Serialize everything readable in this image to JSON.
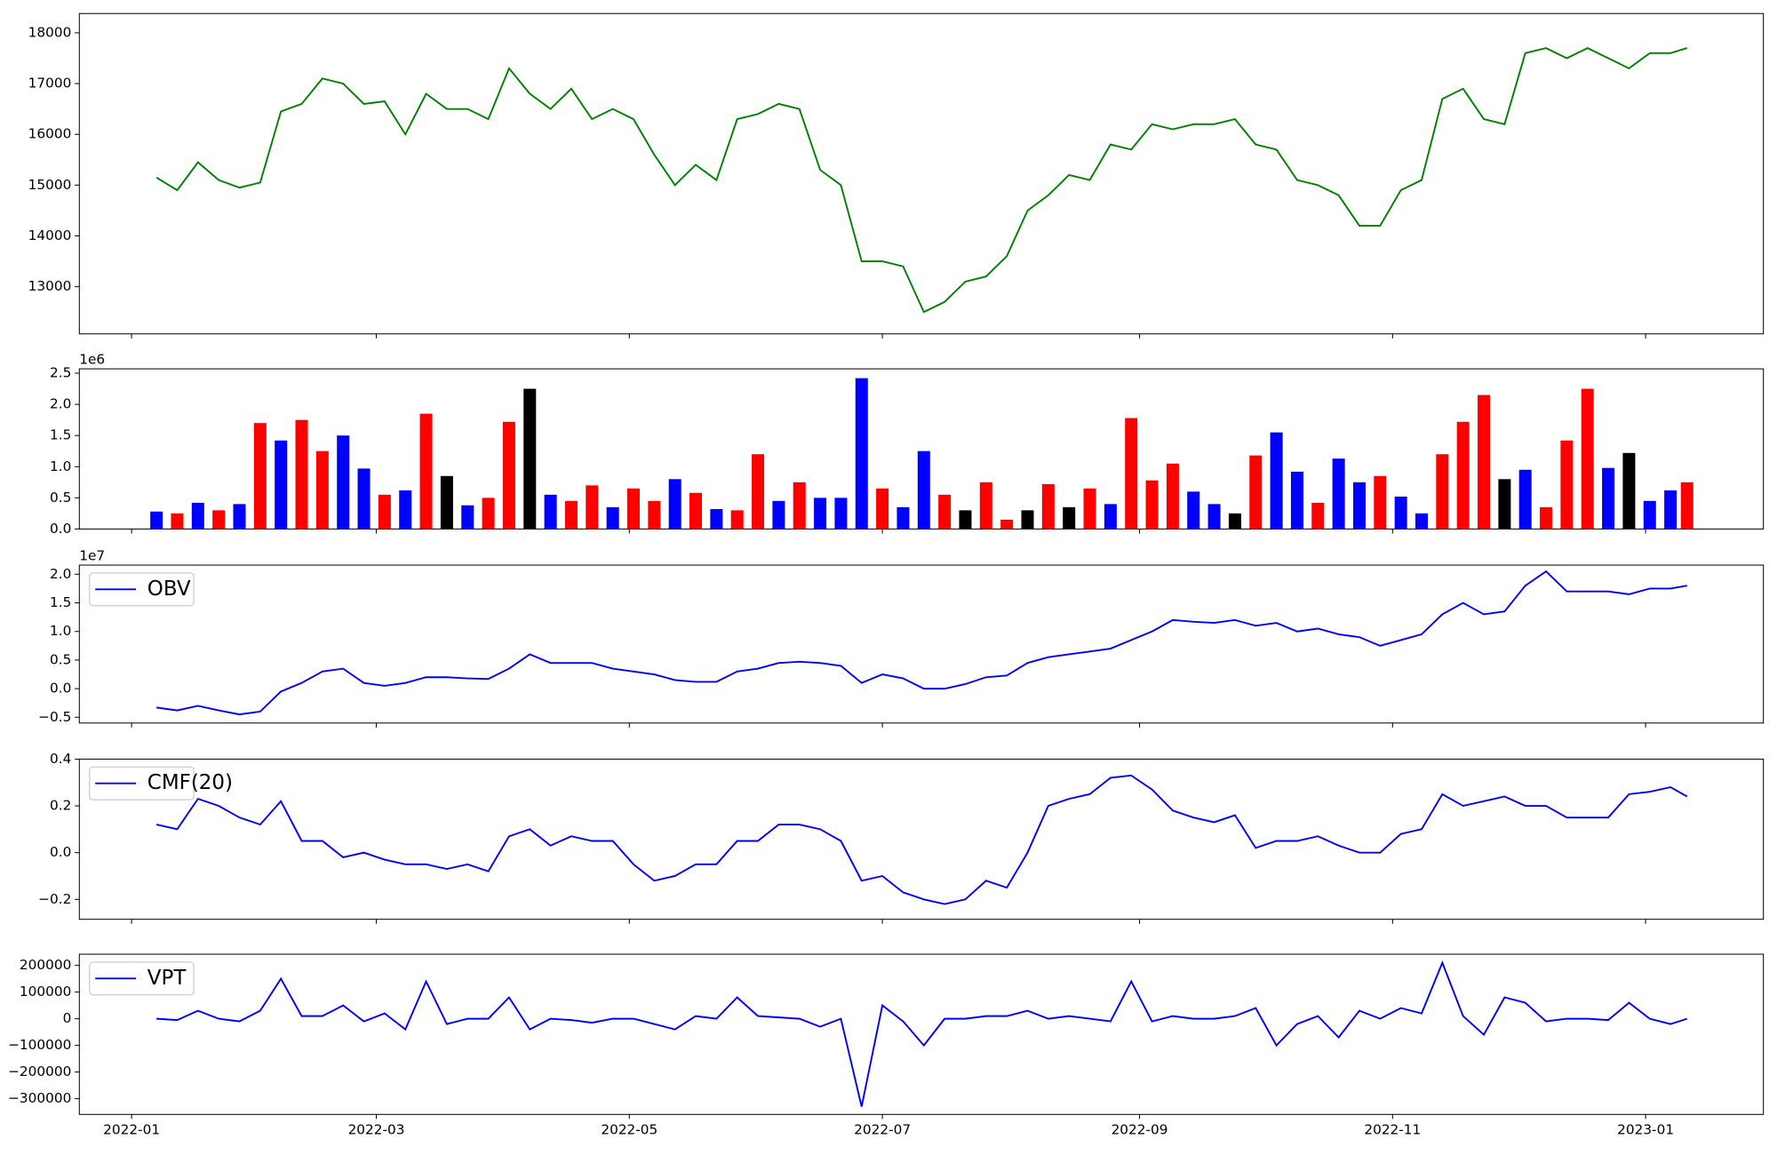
{
  "chart_data": [
    {
      "type": "line",
      "color": "green",
      "x": [
        6,
        11,
        16,
        21,
        26,
        31,
        36,
        41,
        46,
        51,
        56,
        61,
        66,
        71,
        76,
        81,
        86,
        91,
        96,
        101,
        106,
        111,
        116,
        121,
        126,
        131,
        136,
        141,
        146,
        151,
        156,
        161,
        166,
        171,
        176,
        181,
        186,
        191,
        196,
        201,
        206,
        211,
        216,
        221,
        226,
        231,
        236,
        241,
        246,
        251,
        256,
        261,
        266,
        271,
        276,
        281,
        286,
        291,
        296,
        301,
        306,
        311,
        316,
        321,
        326,
        331,
        336,
        341,
        346,
        351,
        356,
        361,
        366,
        371,
        375
      ],
      "values": [
        15150,
        14900,
        15450,
        15100,
        14950,
        15050,
        16450,
        16600,
        17100,
        17000,
        16600,
        16650,
        16000,
        16800,
        16500,
        16500,
        16300,
        17300,
        16800,
        16500,
        16900,
        16300,
        16500,
        16300,
        15600,
        15000,
        15400,
        15100,
        16300,
        16400,
        16600,
        16500,
        15300,
        15000,
        13500,
        13500,
        13400,
        12500,
        12700,
        13100,
        13200,
        13600,
        14500,
        14800,
        15200,
        15100,
        15800,
        15700,
        16200,
        16100,
        16200,
        16200,
        16300,
        15800,
        15700,
        15100,
        15000,
        14800,
        14200,
        14200,
        14900,
        15100,
        16700,
        16900,
        16300,
        16200,
        17600,
        17700,
        17500,
        17700,
        17500,
        17300,
        17600,
        17600,
        17700
      ],
      "xlim": [
        -12.6,
        393.4
      ],
      "ylim": [
        12070,
        18380
      ],
      "yticks": [
        13000,
        14000,
        15000,
        16000,
        17000,
        18000
      ]
    },
    {
      "type": "bar",
      "offset_label": "1e6",
      "x": [
        6,
        11,
        16,
        21,
        26,
        31,
        36,
        41,
        46,
        51,
        56,
        61,
        66,
        71,
        76,
        81,
        86,
        91,
        96,
        101,
        106,
        111,
        116,
        121,
        126,
        131,
        136,
        141,
        146,
        151,
        156,
        161,
        166,
        171,
        176,
        181,
        186,
        191,
        196,
        201,
        206,
        211,
        216,
        221,
        226,
        231,
        236,
        241,
        246,
        251,
        256,
        261,
        266,
        271,
        276,
        281,
        286,
        291,
        296,
        301,
        306,
        311,
        316,
        321,
        326,
        331,
        336,
        341,
        346,
        351,
        356,
        361,
        366,
        371,
        375
      ],
      "values": [
        0.28,
        0.25,
        0.42,
        0.3,
        0.4,
        1.7,
        1.42,
        1.75,
        1.25,
        1.5,
        0.97,
        0.55,
        0.62,
        1.85,
        0.85,
        0.38,
        0.5,
        1.72,
        2.25,
        0.55,
        0.45,
        0.7,
        0.35,
        0.65,
        0.45,
        0.8,
        0.58,
        0.32,
        0.3,
        1.2,
        0.45,
        0.75,
        0.5,
        0.5,
        2.42,
        0.65,
        0.35,
        1.25,
        0.55,
        0.3,
        0.75,
        0.15,
        0.3,
        0.72,
        0.35,
        0.65,
        0.4,
        1.78,
        0.78,
        1.05,
        0.6,
        0.4,
        0.25,
        1.18,
        1.55,
        0.92,
        0.42,
        1.13,
        0.75,
        0.85,
        0.52,
        0.25,
        1.2,
        1.72,
        2.15,
        0.8,
        0.95,
        0.35,
        1.42,
        2.25,
        0.98,
        1.22,
        0.45,
        0.62,
        0.75
      ],
      "colors": [
        "blue",
        "red",
        "blue",
        "red",
        "blue",
        "red",
        "blue",
        "red",
        "red",
        "blue",
        "blue",
        "red",
        "blue",
        "red",
        "black",
        "blue",
        "red",
        "red",
        "black",
        "blue",
        "red",
        "red",
        "blue",
        "red",
        "red",
        "blue",
        "red",
        "blue",
        "red",
        "red",
        "blue",
        "red",
        "blue",
        "blue",
        "blue",
        "red",
        "blue",
        "blue",
        "red",
        "black",
        "red",
        "red",
        "black",
        "red",
        "black",
        "red",
        "blue",
        "red",
        "red",
        "red",
        "blue",
        "blue",
        "black",
        "red",
        "blue",
        "blue",
        "red",
        "blue",
        "blue",
        "red",
        "blue",
        "blue",
        "red",
        "red",
        "red",
        "black",
        "blue",
        "red",
        "red",
        "red",
        "blue",
        "black",
        "blue",
        "blue",
        "red"
      ],
      "xlim": [
        -12.6,
        393.4
      ],
      "ylim": [
        0,
        2.57
      ],
      "yticks": [
        {
          "value": 0,
          "label": "0.0"
        },
        {
          "value": 0.5,
          "label": "0.5"
        },
        {
          "value": 1,
          "label": "1.0"
        },
        {
          "value": 1.5,
          "label": "1.5"
        },
        {
          "value": 2,
          "label": "2.0"
        },
        {
          "value": 2.5,
          "label": "2.5"
        }
      ]
    },
    {
      "type": "line",
      "offset_label": "1e7",
      "legend": "upper left",
      "x": [
        6,
        11,
        16,
        21,
        26,
        31,
        36,
        41,
        46,
        51,
        56,
        61,
        66,
        71,
        76,
        81,
        86,
        91,
        96,
        101,
        106,
        111,
        116,
        121,
        126,
        131,
        136,
        141,
        146,
        151,
        156,
        161,
        166,
        171,
        176,
        181,
        186,
        191,
        196,
        201,
        206,
        211,
        216,
        221,
        226,
        231,
        236,
        241,
        246,
        251,
        256,
        261,
        266,
        271,
        276,
        281,
        286,
        291,
        296,
        301,
        306,
        311,
        316,
        321,
        326,
        331,
        336,
        341,
        346,
        351,
        356,
        361,
        366,
        371,
        375
      ],
      "series": [
        {
          "name": "OBV",
          "color": "blue",
          "values": [
            -0.33,
            -0.38,
            -0.3,
            -0.38,
            -0.45,
            -0.4,
            -0.05,
            0.1,
            0.3,
            0.35,
            0.1,
            0.05,
            0.1,
            0.2,
            0.2,
            0.18,
            0.17,
            0.35,
            0.6,
            0.45,
            0.45,
            0.45,
            0.35,
            0.3,
            0.25,
            0.15,
            0.12,
            0.12,
            0.3,
            0.35,
            0.45,
            0.47,
            0.45,
            0.4,
            0.1,
            0.25,
            0.18,
            0.0,
            0.0,
            0.08,
            0.2,
            0.23,
            0.45,
            0.55,
            0.6,
            0.65,
            0.7,
            0.85,
            1.0,
            1.2,
            1.17,
            1.15,
            1.2,
            1.1,
            1.15,
            1.0,
            1.05,
            0.95,
            0.9,
            0.75,
            0.85,
            0.95,
            1.3,
            1.5,
            1.3,
            1.35,
            1.8,
            2.05,
            1.7,
            1.7,
            1.7,
            1.65,
            1.75,
            1.75,
            1.8
          ]
        }
      ],
      "xlim": [
        -12.6,
        393.4
      ],
      "ylim": [
        -0.6,
        2.16
      ],
      "yticks": [
        {
          "value": -0.5,
          "label": "−0.5"
        },
        {
          "value": 0,
          "label": "0.0"
        },
        {
          "value": 0.5,
          "label": "0.5"
        },
        {
          "value": 1,
          "label": "1.0"
        },
        {
          "value": 1.5,
          "label": "1.5"
        },
        {
          "value": 2,
          "label": "2.0"
        }
      ]
    },
    {
      "type": "line",
      "legend": "upper left",
      "x": [
        6,
        11,
        16,
        21,
        26,
        31,
        36,
        41,
        46,
        51,
        56,
        61,
        66,
        71,
        76,
        81,
        86,
        91,
        96,
        101,
        106,
        111,
        116,
        121,
        126,
        131,
        136,
        141,
        146,
        151,
        156,
        161,
        166,
        171,
        176,
        181,
        186,
        191,
        196,
        201,
        206,
        211,
        216,
        221,
        226,
        231,
        236,
        241,
        246,
        251,
        256,
        261,
        266,
        271,
        276,
        281,
        286,
        291,
        296,
        301,
        306,
        311,
        316,
        321,
        326,
        331,
        336,
        341,
        346,
        351,
        356,
        361,
        366,
        371,
        375
      ],
      "series": [
        {
          "name": "CMF(20)",
          "color": "blue",
          "values": [
            0.12,
            0.1,
            0.23,
            0.2,
            0.15,
            0.12,
            0.22,
            0.05,
            0.05,
            -0.02,
            0.0,
            -0.03,
            -0.05,
            -0.05,
            -0.07,
            -0.05,
            -0.08,
            0.07,
            0.1,
            0.03,
            0.07,
            0.05,
            0.05,
            -0.05,
            -0.12,
            -0.1,
            -0.05,
            -0.05,
            0.05,
            0.05,
            0.12,
            0.12,
            0.1,
            0.05,
            -0.12,
            -0.1,
            -0.17,
            -0.2,
            -0.22,
            -0.2,
            -0.12,
            -0.15,
            0.0,
            0.2,
            0.23,
            0.25,
            0.32,
            0.33,
            0.27,
            0.18,
            0.15,
            0.13,
            0.16,
            0.02,
            0.05,
            0.05,
            0.07,
            0.03,
            0.0,
            0.0,
            0.08,
            0.1,
            0.25,
            0.2,
            0.22,
            0.24,
            0.2,
            0.2,
            0.15,
            0.15,
            0.15,
            0.25,
            0.26,
            0.28,
            0.24
          ]
        }
      ],
      "xlim": [
        -12.6,
        393.4
      ],
      "ylim": [
        -0.285,
        0.4
      ],
      "yticks": [
        {
          "value": -0.2,
          "label": "−0.2"
        },
        {
          "value": 0,
          "label": "0.0"
        },
        {
          "value": 0.2,
          "label": "0.2"
        },
        {
          "value": 0.4,
          "label": "0.4"
        }
      ]
    },
    {
      "type": "line",
      "legend": "upper left",
      "x": [
        6,
        11,
        16,
        21,
        26,
        31,
        36,
        41,
        46,
        51,
        56,
        61,
        66,
        71,
        76,
        81,
        86,
        91,
        96,
        101,
        106,
        111,
        116,
        121,
        126,
        131,
        136,
        141,
        146,
        151,
        156,
        161,
        166,
        171,
        176,
        181,
        186,
        191,
        196,
        201,
        206,
        211,
        216,
        221,
        226,
        231,
        236,
        241,
        246,
        251,
        256,
        261,
        266,
        271,
        276,
        281,
        286,
        291,
        296,
        301,
        306,
        311,
        316,
        321,
        326,
        331,
        336,
        341,
        346,
        351,
        356,
        361,
        366,
        371,
        375
      ],
      "series": [
        {
          "name": "VPT",
          "color": "blue",
          "values": [
            0,
            -5000,
            30000,
            0,
            -10000,
            30000,
            150000,
            10000,
            10000,
            50000,
            -10000,
            20000,
            -40000,
            140000,
            -20000,
            0,
            0,
            80000,
            -40000,
            0,
            -5000,
            -15000,
            0,
            0,
            -20000,
            -40000,
            10000,
            0,
            80000,
            10000,
            5000,
            0,
            -30000,
            0,
            -330000,
            50000,
            -10000,
            -100000,
            0,
            0,
            10000,
            10000,
            30000,
            0,
            10000,
            0,
            -10000,
            140000,
            -10000,
            10000,
            0,
            0,
            10000,
            40000,
            -100000,
            -20000,
            10000,
            -70000,
            30000,
            0,
            40000,
            20000,
            210000,
            10000,
            -60000,
            80000,
            60000,
            -10000,
            0,
            0,
            -5000,
            60000,
            0,
            -20000,
            0
          ]
        }
      ],
      "xlim": [
        -12.6,
        393.4
      ],
      "ylim": [
        -359000,
        242000
      ],
      "yticks": [
        {
          "value": -300000,
          "label": "−300000"
        },
        {
          "value": -200000,
          "label": "−200000"
        },
        {
          "value": -100000,
          "label": "−100000"
        },
        0,
        100000,
        200000
      ],
      "xticks": [
        {
          "value": 0,
          "label": "2022-01"
        },
        {
          "value": 59,
          "label": "2022-03"
        },
        {
          "value": 120,
          "label": "2022-05"
        },
        {
          "value": 181,
          "label": "2022-07"
        },
        {
          "value": 243,
          "label": "2022-09"
        },
        {
          "value": 304,
          "label": "2022-11"
        },
        {
          "value": 365,
          "label": "2023-01"
        }
      ]
    }
  ]
}
